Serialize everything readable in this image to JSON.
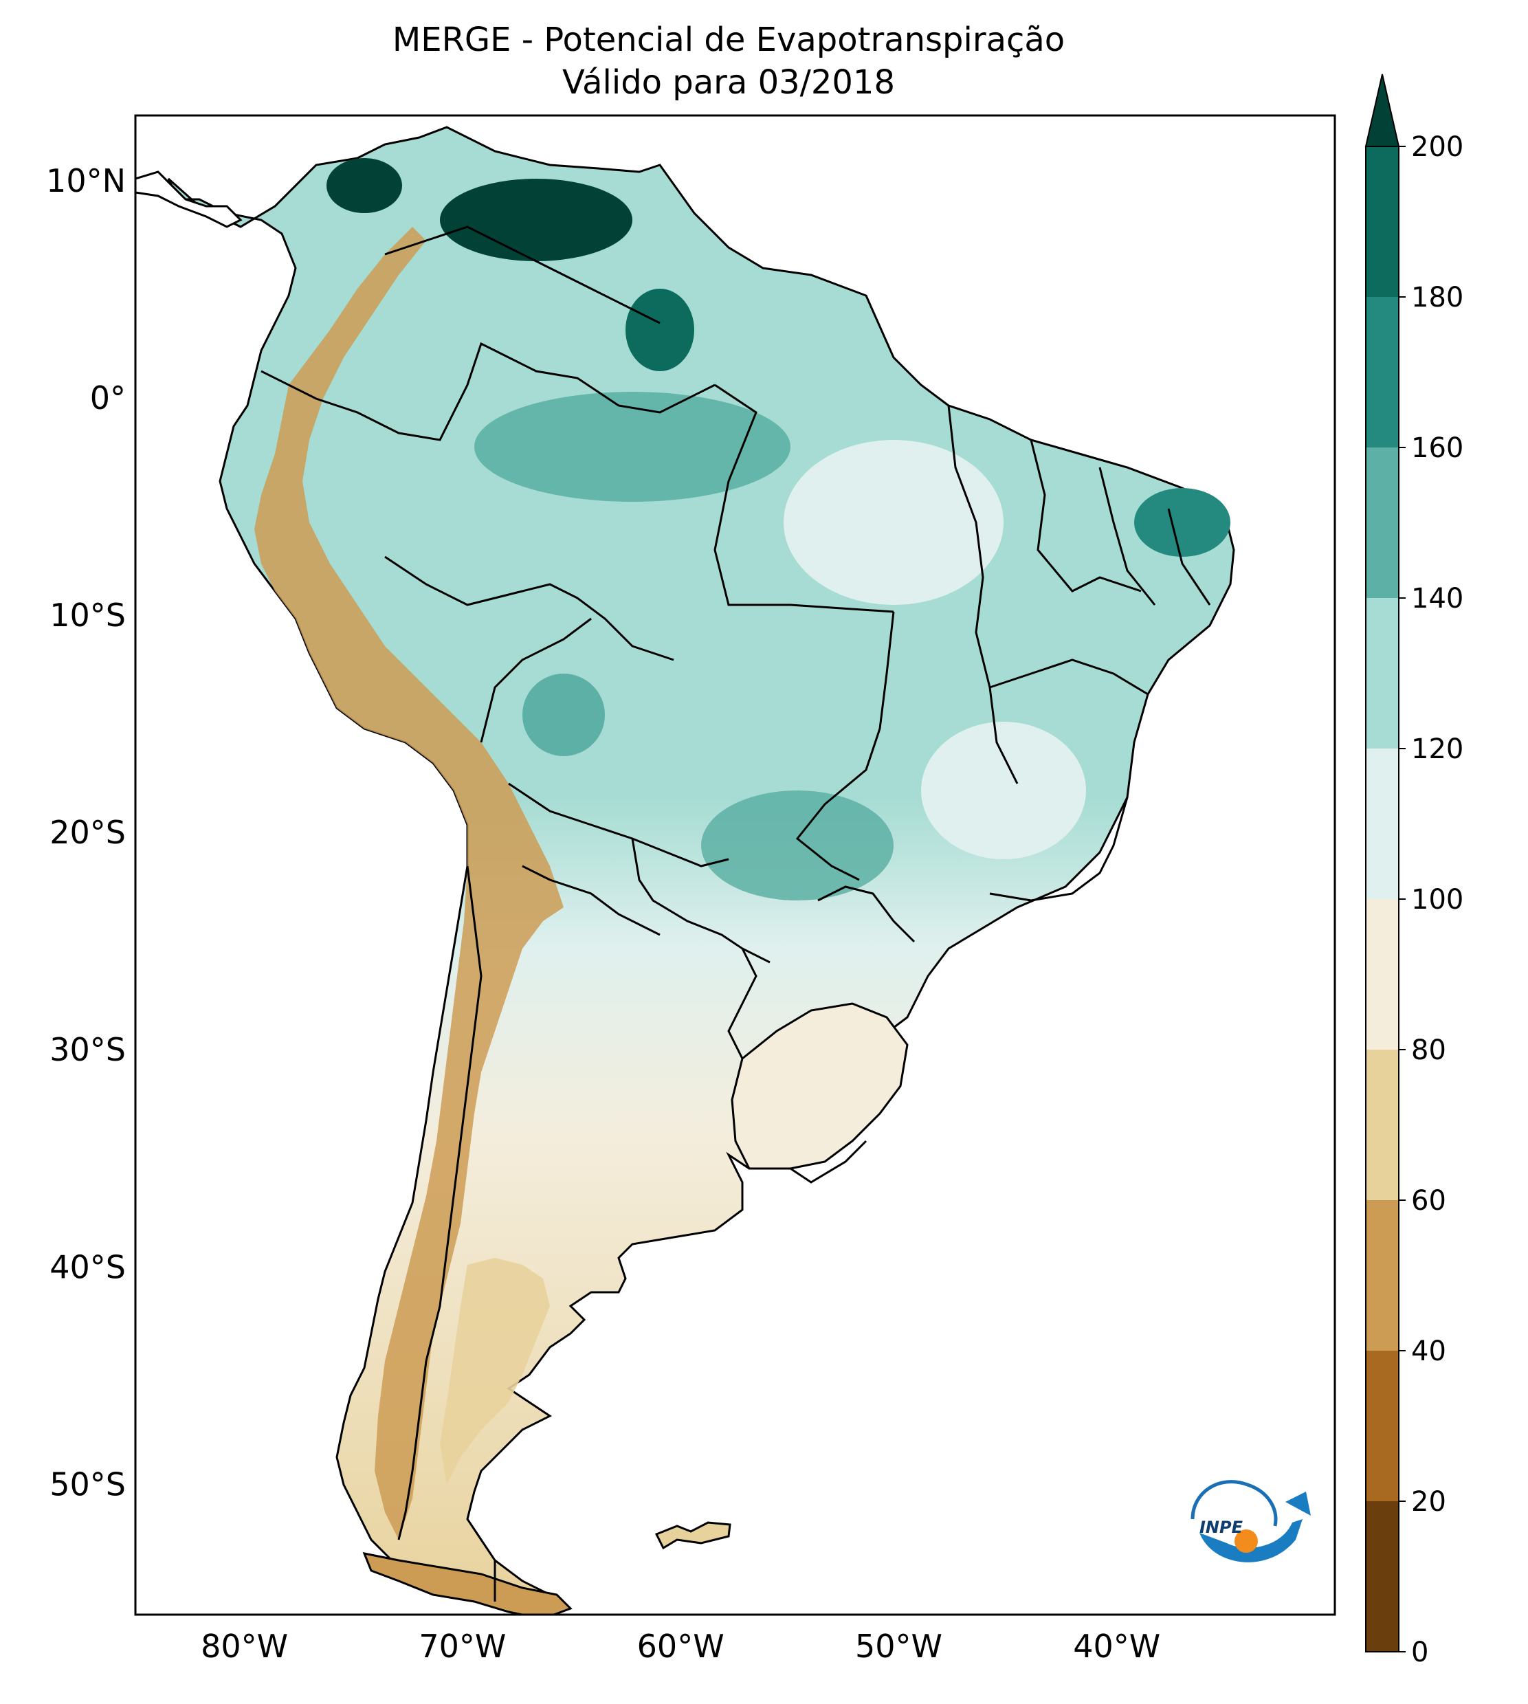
{
  "title_line1": "MERGE - Potencial de Evapotranspiração",
  "title_line2": "Válido para 03/2018",
  "map": {
    "lon_range": [
      -85,
      -30
    ],
    "lat_range": [
      -56,
      13
    ],
    "lat_ticks": [
      {
        "value": 10,
        "label": "10°N"
      },
      {
        "value": 0,
        "label": "0°"
      },
      {
        "value": -10,
        "label": "10°S"
      },
      {
        "value": -20,
        "label": "20°S"
      },
      {
        "value": -30,
        "label": "30°S"
      },
      {
        "value": -40,
        "label": "40°S"
      },
      {
        "value": -50,
        "label": "50°S"
      }
    ],
    "lon_ticks": [
      {
        "value": -80,
        "label": "80°W"
      },
      {
        "value": -70,
        "label": "70°W"
      },
      {
        "value": -60,
        "label": "60°W"
      },
      {
        "value": -50,
        "label": "50°W"
      },
      {
        "value": -40,
        "label": "40°W"
      }
    ]
  },
  "colorbar": {
    "levels": [
      0,
      20,
      40,
      60,
      80,
      100,
      120,
      140,
      160,
      180,
      200
    ],
    "labels": [
      "0",
      "20",
      "40",
      "60",
      "80",
      "100",
      "120",
      "140",
      "160",
      "180",
      "200"
    ],
    "colors": [
      "#6b3f0d",
      "#a86a20",
      "#cc9c55",
      "#e8d29c",
      "#f4eddc",
      "#dff0ee",
      "#a6dcd3",
      "#5db0a5",
      "#248a80",
      "#0d6b5e",
      "#024236"
    ],
    "extend": "max"
  },
  "logo_text": "INPE"
}
